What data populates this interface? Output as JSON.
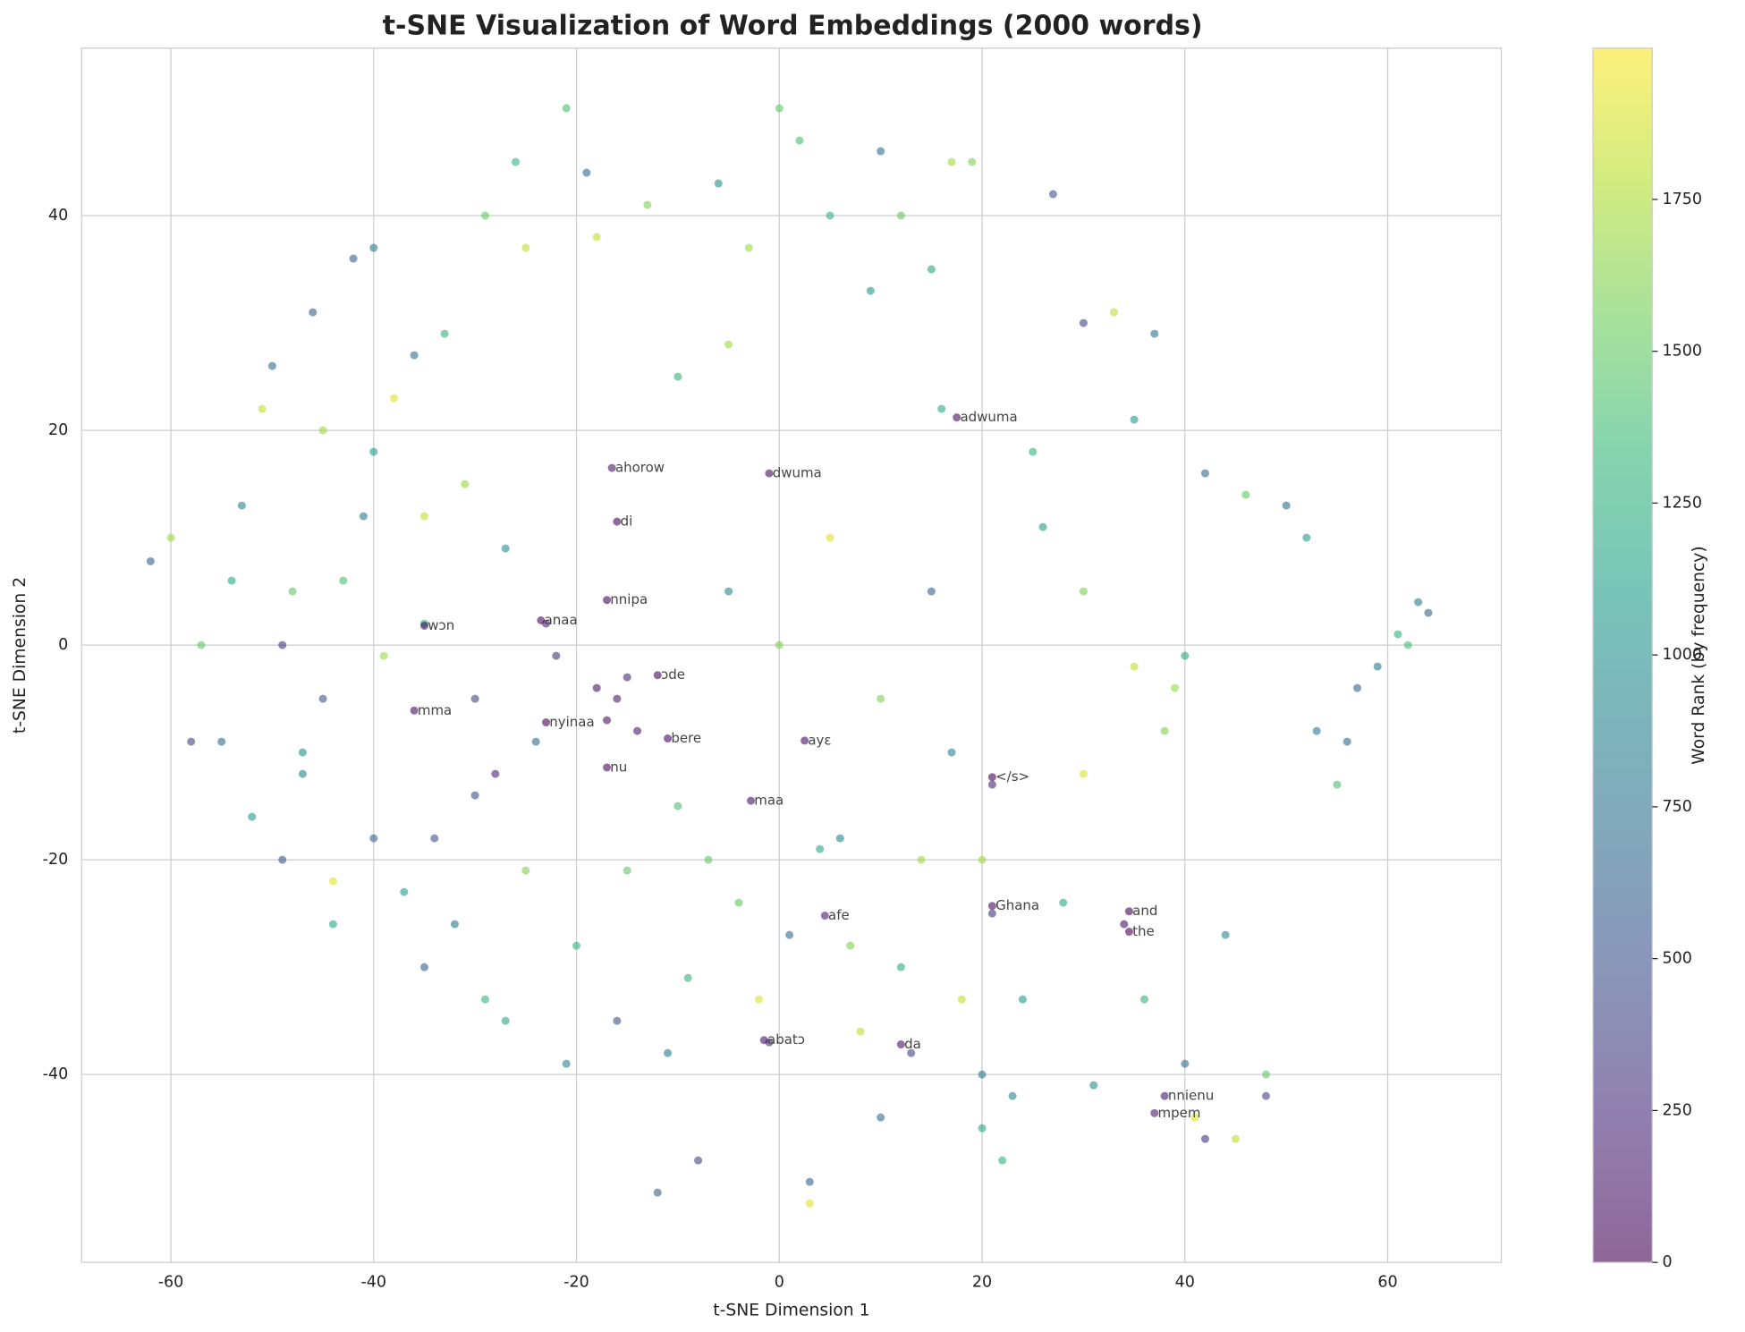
{
  "chart_data": {
    "type": "scatter",
    "title": "t-SNE Visualization of Word Embeddings (2000 words)",
    "x_label": "t-SNE Dimension 1",
    "y_label": "t-SNE Dimension 2",
    "colorbar_label": "Word Rank (by frequency)",
    "colormap": "viridis",
    "alpha": 0.6,
    "grid": true,
    "xlim": [
      -68.8,
      71.2
    ],
    "ylim": [
      -57.5,
      55.6
    ],
    "clim": [
      0,
      1999
    ],
    "xticks": [
      -60,
      -40,
      -20,
      0,
      20,
      40,
      60
    ],
    "yticks": [
      -40,
      -20,
      0,
      20,
      40
    ],
    "cticks": [
      0,
      250,
      500,
      750,
      1000,
      1250,
      1500,
      1750
    ],
    "series": [
      {
        "x": [
          -62,
          -60,
          -58,
          -57,
          -55,
          -54,
          -52,
          -51,
          -50,
          -49,
          -49,
          -48,
          -47,
          -46,
          -45,
          -44,
          -44,
          -43,
          -42,
          -41,
          -40,
          -40,
          -39,
          -38,
          -37,
          -36,
          -35,
          -35,
          -34,
          -33,
          -32,
          -31,
          -30,
          -29,
          -29,
          -28,
          -27,
          -26,
          -25,
          -25,
          -24,
          -23,
          -22,
          -21,
          -21,
          -20,
          -19,
          -18,
          -17,
          -16,
          -15,
          -14,
          -18,
          -16,
          -15,
          -13,
          -12,
          -11,
          -9,
          -8,
          -7,
          -6,
          -5,
          -4,
          -3,
          -2,
          -1,
          0,
          1,
          2,
          3,
          3,
          4,
          5,
          6,
          7,
          9,
          10,
          10,
          12,
          12,
          13,
          14,
          15,
          16,
          17,
          17,
          18,
          19,
          20,
          20,
          21,
          21,
          22,
          23,
          24,
          25,
          27,
          28,
          30,
          31,
          33,
          34,
          35,
          35,
          37,
          38,
          39,
          40,
          40,
          41,
          42,
          42,
          44,
          45,
          46,
          48,
          50,
          52,
          53,
          55,
          56,
          57,
          59,
          61,
          62,
          63,
          64,
          -35,
          -47,
          -53,
          -10,
          8,
          26,
          30,
          36,
          48,
          -27,
          0,
          5,
          -5,
          10,
          -10,
          15,
          -30,
          30,
          -45,
          -40,
          20,
          17.5,
          -16.5,
          -1,
          -16,
          -17,
          -23.5,
          -35,
          -12,
          -36,
          -23,
          -11,
          2.5,
          -17,
          -2.8,
          21,
          21,
          4.5,
          34.5,
          34.5,
          -1.5,
          12,
          38,
          37
        ],
        "y": [
          7.8,
          10,
          -9,
          0,
          -9,
          6,
          -16,
          22,
          26,
          0,
          -20,
          5,
          -12,
          31,
          20,
          -26,
          -22,
          6,
          36,
          12,
          37,
          -18,
          -1,
          23,
          -23,
          27,
          12,
          2,
          -18,
          29,
          -26,
          15,
          -14,
          -33,
          40,
          -12,
          9,
          45,
          37,
          -21,
          -9,
          2,
          -1,
          50,
          -39,
          -28,
          44,
          -4,
          -7,
          -5,
          -3,
          -8,
          38,
          -35,
          -21,
          41,
          -51,
          -38,
          -31,
          -48,
          -20,
          43,
          28,
          -24,
          37,
          -33,
          -37,
          50,
          -27,
          47,
          -52,
          -50,
          -19,
          40,
          -18,
          -28,
          33,
          46,
          -44,
          40,
          -30,
          -38,
          -20,
          35,
          22,
          45,
          -10,
          -33,
          45,
          -40,
          -45,
          -25,
          -13,
          -48,
          -42,
          -33,
          18,
          42,
          -24,
          30,
          -41,
          31,
          -26,
          -2,
          21,
          29,
          -8,
          -4,
          -39,
          -1,
          -44,
          -46,
          16,
          -27,
          -46,
          14,
          -42,
          13,
          10,
          -8,
          -13,
          -9,
          -4,
          -2,
          1,
          0,
          4,
          3,
          -30,
          -10,
          13,
          -15,
          -36,
          11,
          -12,
          -33,
          -40,
          -35,
          0,
          10,
          5,
          -5,
          25,
          5,
          -5,
          5,
          -5,
          18,
          -20,
          21.2,
          16.5,
          16,
          11.5,
          4.2,
          2.3,
          1.8,
          -2.8,
          -6.1,
          -7.2,
          -8.7,
          -8.9,
          -11.4,
          -14.5,
          -12.3,
          -24.3,
          -25.2,
          -24.8,
          -26.7,
          -36.8,
          -37.2,
          -42,
          -43.6
        ],
        "ranks": [
          600,
          1700,
          400,
          1500,
          700,
          1200,
          1100,
          1800,
          700,
          300,
          500,
          1500,
          900,
          600,
          1700,
          1200,
          1900,
          1400,
          600,
          800,
          800,
          600,
          1700,
          1900,
          1100,
          700,
          1800,
          1200,
          500,
          1300,
          800,
          1700,
          500,
          1300,
          1500,
          200,
          1000,
          1300,
          1800,
          1600,
          700,
          200,
          300,
          1400,
          900,
          1300,
          600,
          100,
          100,
          150,
          200,
          150,
          1800,
          500,
          1500,
          1600,
          600,
          800,
          1300,
          400,
          1500,
          1000,
          1700,
          1500,
          1700,
          1900,
          200,
          1500,
          700,
          1400,
          1900,
          600,
          1200,
          1300,
          900,
          1600,
          1100,
          700,
          700,
          1500,
          1200,
          400,
          1700,
          1200,
          1200,
          1700,
          900,
          1800,
          1600,
          800,
          1200,
          300,
          200,
          1300,
          900,
          1100,
          1300,
          500,
          1200,
          400,
          1000,
          1800,
          100,
          1800,
          1100,
          800,
          1600,
          1700,
          700,
          1200,
          1900,
          300,
          700,
          900,
          1800,
          1500,
          400,
          700,
          1100,
          800,
          1400,
          700,
          600,
          800,
          1300,
          1400,
          800,
          600,
          600,
          1000,
          900,
          1400,
          1800,
          1100,
          1900,
          1300,
          1500,
          1200,
          1600,
          1900,
          900,
          1600,
          1300,
          600,
          400,
          1600,
          500,
          1100,
          1700,
          80,
          120,
          60,
          40,
          30,
          20,
          50,
          25,
          70,
          15,
          35,
          60,
          45,
          90,
          10,
          55,
          150,
          5,
          8,
          110,
          95,
          130,
          140
        ]
      }
    ],
    "annotations": [
      {
        "text": "adwuma",
        "x": 17.5,
        "y": 21.2
      },
      {
        "text": "ahorow",
        "x": -16.5,
        "y": 16.5
      },
      {
        "text": "dwuma",
        "x": -1,
        "y": 16
      },
      {
        "text": "di",
        "x": -16,
        "y": 11.5
      },
      {
        "text": "nnipa",
        "x": -17,
        "y": 4.2
      },
      {
        "text": "anaa",
        "x": -23.5,
        "y": 2.3
      },
      {
        "text": "wɔn",
        "x": -35,
        "y": 1.8
      },
      {
        "text": "ɔde",
        "x": -12,
        "y": -2.8
      },
      {
        "text": "mma",
        "x": -36,
        "y": -6.1
      },
      {
        "text": "nyinaa",
        "x": -23,
        "y": -7.2
      },
      {
        "text": "bere",
        "x": -11,
        "y": -8.7
      },
      {
        "text": "ayɛ",
        "x": 2.5,
        "y": -8.9
      },
      {
        "text": "nu",
        "x": -17,
        "y": -11.4
      },
      {
        "text": "maa",
        "x": -2.8,
        "y": -14.5
      },
      {
        "text": "</s>",
        "x": 21,
        "y": -12.3
      },
      {
        "text": "Ghana",
        "x": 21,
        "y": -24.3
      },
      {
        "text": "afe",
        "x": 4.5,
        "y": -25.2
      },
      {
        "text": "and",
        "x": 34.5,
        "y": -24.8
      },
      {
        "text": "the",
        "x": 34.5,
        "y": -26.7
      },
      {
        "text": "abatɔ",
        "x": -1.5,
        "y": -36.8
      },
      {
        "text": "da",
        "x": 12,
        "y": -37.2
      },
      {
        "text": "nnienu",
        "x": 38,
        "y": -42
      },
      {
        "text": "mpem",
        "x": 37,
        "y": -43.6
      }
    ]
  }
}
